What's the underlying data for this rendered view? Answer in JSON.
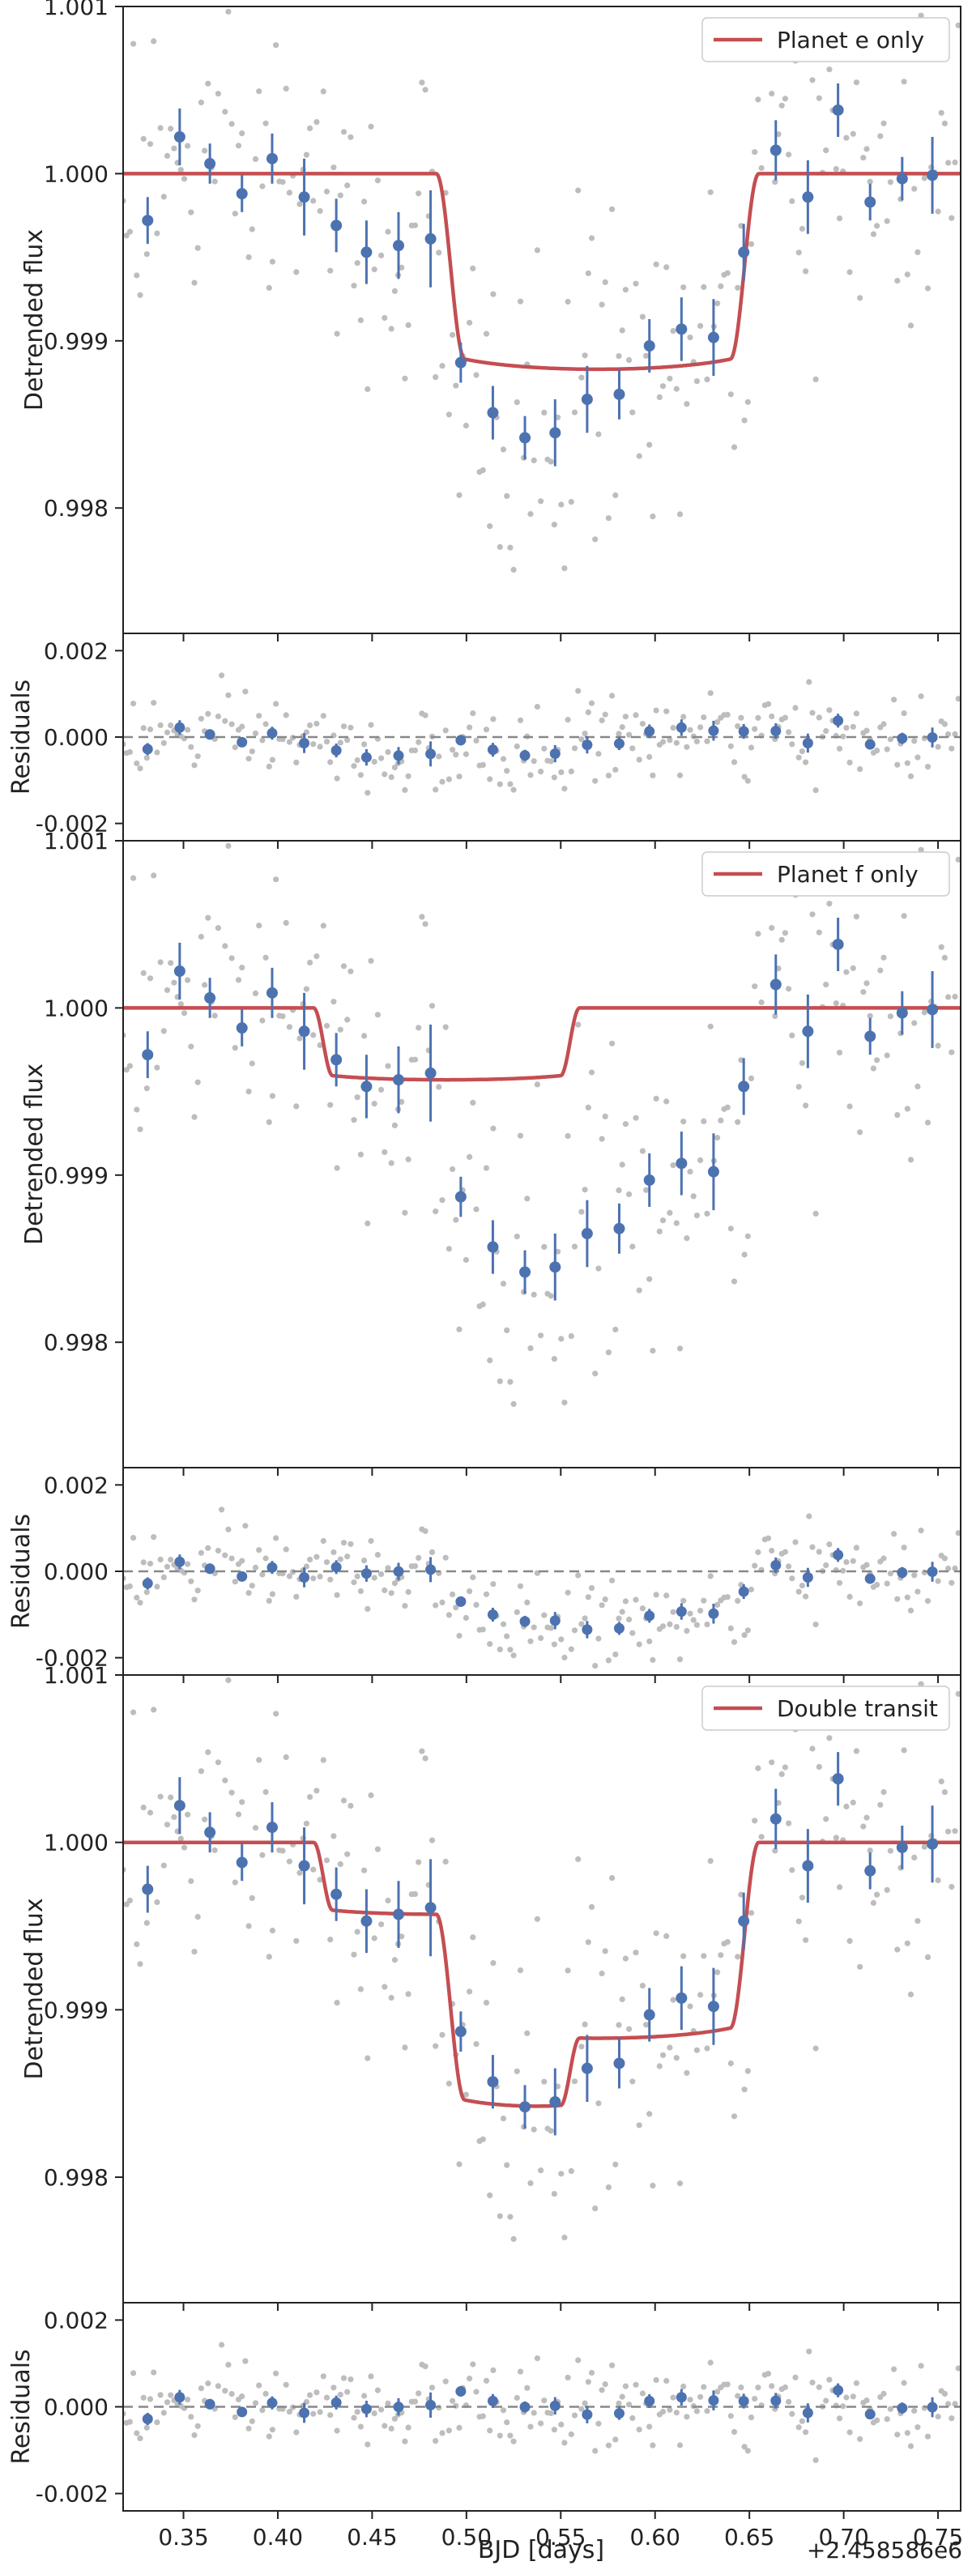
{
  "colors": {
    "model": "#c44e52",
    "binned": "#4c72b0",
    "raw": "#bdbdbd",
    "zero_line": "#888888",
    "axis": "#222222"
  },
  "shared_x": {
    "label": "BJD [days]",
    "offset_label": "+2.458586e6",
    "xlim": [
      0.318,
      0.762
    ],
    "ticks": [
      0.35,
      0.4,
      0.45,
      0.5,
      0.55,
      0.6,
      0.65,
      0.7,
      0.75
    ],
    "tick_labels": [
      "0.35",
      "0.40",
      "0.45",
      "0.50",
      "0.55",
      "0.60",
      "0.65",
      "0.70",
      "0.75"
    ]
  },
  "binned_x": [
    0.331,
    0.348,
    0.364,
    0.381,
    0.397,
    0.414,
    0.431,
    0.447,
    0.464,
    0.481,
    0.497,
    0.514,
    0.531,
    0.547,
    0.564,
    0.581,
    0.597,
    0.614,
    0.631,
    0.647,
    0.664,
    0.681,
    0.697,
    0.714,
    0.731,
    0.747
  ],
  "binned_flux": [
    0.99972,
    1.00022,
    1.00006,
    0.99988,
    1.00009,
    0.99986,
    0.99969,
    0.99953,
    0.99957,
    0.99961,
    0.99887,
    0.99857,
    0.99842,
    0.99845,
    0.99865,
    0.99868,
    0.99897,
    0.99907,
    0.99902,
    0.99953,
    1.00014,
    0.99986,
    1.00038,
    0.99983,
    0.99997,
    0.99999
  ],
  "binned_err": [
    0.00014,
    0.00017,
    0.00012,
    0.00011,
    0.00015,
    0.00023,
    0.00016,
    0.00019,
    0.0002,
    0.00029,
    0.00012,
    0.00016,
    0.00013,
    0.0002,
    0.0002,
    0.00015,
    0.00016,
    0.00019,
    0.00023,
    0.00017,
    0.00018,
    0.00022,
    0.00016,
    0.00011,
    0.00013,
    0.00023
  ],
  "chart_data": [
    {
      "type": "line",
      "panel": "flux",
      "title": "",
      "legend": "Planet e only",
      "legend_position": "top-right",
      "xlabel": "",
      "ylabel": "Detrended flux",
      "ylim": [
        0.99725,
        1.001
      ],
      "yticks": [
        0.998,
        0.999,
        1.0,
        1.001
      ],
      "ytick_labels": [
        "0.998",
        "0.999",
        "1.000",
        "1.001"
      ],
      "series": [
        {
          "name": "Raw flux",
          "kind": "scatter",
          "color": "#bdbdbd"
        },
        {
          "name": "Binned flux",
          "kind": "errorbar",
          "color": "#4c72b0"
        },
        {
          "name": "Planet e only",
          "kind": "model",
          "color": "#c44e52",
          "model": [
            {
              "t0": 0.484,
              "t4": 0.655,
              "depth": 0.00117,
              "ingress": 0.015
            }
          ]
        }
      ]
    },
    {
      "type": "scatter",
      "panel": "residuals",
      "xlabel": "",
      "ylabel": "Residuals",
      "ylim": [
        -0.0024,
        0.0024
      ],
      "yticks": [
        -0.002,
        0.0,
        0.002
      ],
      "ytick_labels": [
        "-0.002",
        "0.000",
        "0.002"
      ],
      "reference_line": 0.0,
      "residual_of": "Planet e only"
    },
    {
      "type": "line",
      "panel": "flux",
      "title": "",
      "legend": "Planet f only",
      "legend_position": "top-right",
      "xlabel": "",
      "ylabel": "Detrended flux",
      "ylim": [
        0.99725,
        1.001
      ],
      "yticks": [
        0.998,
        0.999,
        1.0,
        1.001
      ],
      "ytick_labels": [
        "0.998",
        "0.999",
        "1.000",
        "1.001"
      ],
      "series": [
        {
          "name": "Raw flux",
          "kind": "scatter",
          "color": "#bdbdbd"
        },
        {
          "name": "Binned flux",
          "kind": "errorbar",
          "color": "#4c72b0"
        },
        {
          "name": "Planet f only",
          "kind": "model",
          "color": "#c44e52",
          "model": [
            {
              "t0": 0.419,
              "t4": 0.56,
              "depth": 0.00043,
              "ingress": 0.01
            }
          ]
        }
      ]
    },
    {
      "type": "scatter",
      "panel": "residuals",
      "xlabel": "",
      "ylabel": "Residuals",
      "ylim": [
        -0.0024,
        0.0024
      ],
      "yticks": [
        -0.002,
        0.0,
        0.002
      ],
      "ytick_labels": [
        "-0.002",
        "0.000",
        "0.002"
      ],
      "reference_line": 0.0,
      "residual_of": "Planet f only"
    },
    {
      "type": "line",
      "panel": "flux",
      "title": "",
      "legend": "Double transit",
      "legend_position": "top-right",
      "xlabel": "",
      "ylabel": "Detrended flux",
      "ylim": [
        0.99725,
        1.001
      ],
      "yticks": [
        0.998,
        0.999,
        1.0,
        1.001
      ],
      "ytick_labels": [
        "0.998",
        "0.999",
        "1.000",
        "1.001"
      ],
      "series": [
        {
          "name": "Raw flux",
          "kind": "scatter",
          "color": "#bdbdbd"
        },
        {
          "name": "Binned flux",
          "kind": "errorbar",
          "color": "#4c72b0"
        },
        {
          "name": "Double transit",
          "kind": "model",
          "color": "#c44e52",
          "model": [
            {
              "t0": 0.484,
              "t4": 0.655,
              "depth": 0.00117,
              "ingress": 0.015
            },
            {
              "t0": 0.419,
              "t4": 0.56,
              "depth": 0.00043,
              "ingress": 0.01
            }
          ]
        }
      ]
    },
    {
      "type": "scatter",
      "panel": "residuals",
      "xlabel": "BJD [days]",
      "ylabel": "Residuals",
      "ylim": [
        -0.0024,
        0.0024
      ],
      "yticks": [
        -0.002,
        0.0,
        0.002
      ],
      "ytick_labels": [
        "-0.002",
        "0.000",
        "0.002"
      ],
      "reference_line": 0.0,
      "residual_of": "Double transit"
    }
  ]
}
